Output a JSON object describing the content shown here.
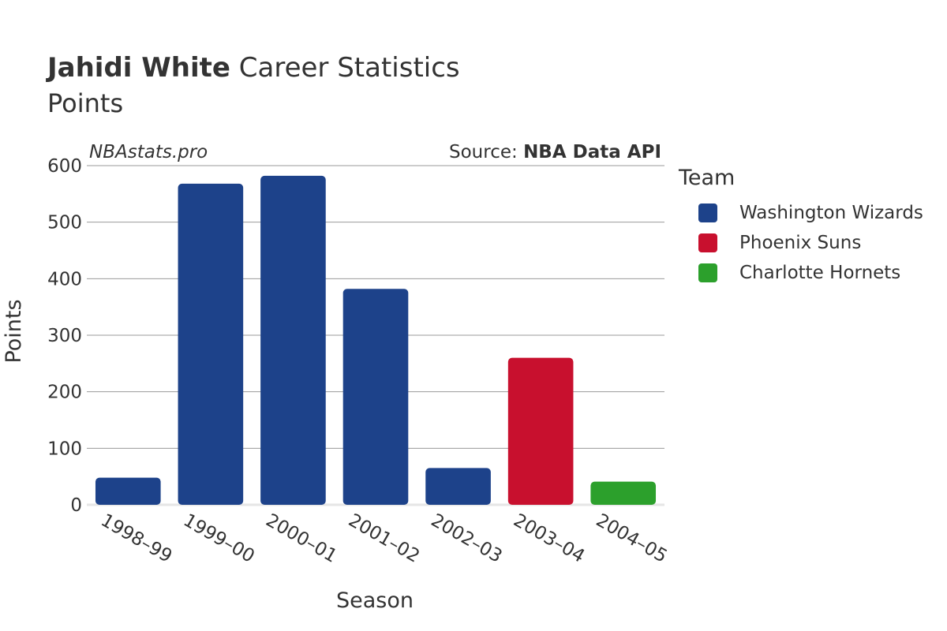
{
  "header": {
    "title_bold": "Jahidi White",
    "title_rest": "Career Statistics",
    "subtitle": "Points"
  },
  "watermark": "NBAstats.pro",
  "source": {
    "prefix": "Source: ",
    "name": "NBA Data API"
  },
  "legend": {
    "title": "Team",
    "items": [
      {
        "label": "Washington Wizards",
        "color": "#1d428a"
      },
      {
        "label": "Phoenix Suns",
        "color": "#c8102e"
      },
      {
        "label": "Charlotte Hornets",
        "color": "#2ca02c"
      }
    ]
  },
  "chart_data": {
    "type": "bar",
    "categories": [
      "1998–99",
      "1999–00",
      "2000–01",
      "2001–02",
      "2002–03",
      "2003–04",
      "2004–05"
    ],
    "values": [
      48,
      568,
      582,
      382,
      65,
      260,
      41
    ],
    "teams": [
      "Washington Wizards",
      "Washington Wizards",
      "Washington Wizards",
      "Washington Wizards",
      "Washington Wizards",
      "Phoenix Suns",
      "Charlotte Hornets"
    ],
    "xlabel": "Season",
    "ylabel": "Points",
    "ylim": [
      0,
      600
    ],
    "yticks": [
      0,
      100,
      200,
      300,
      400,
      500,
      600
    ],
    "grid": true
  }
}
